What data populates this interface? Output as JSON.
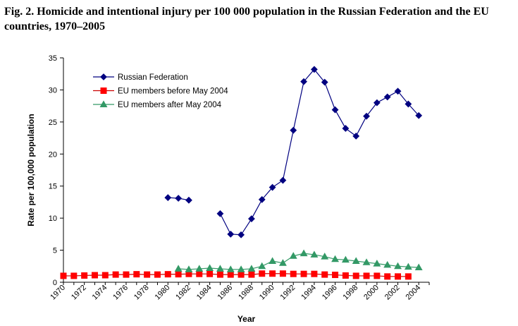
{
  "figure": {
    "title": "Fig. 2. Homicide and intentional injury per 100 000 population in the Russian Federation and the EU countries, 1970–2005"
  },
  "chart_data": {
    "type": "line",
    "title": "",
    "xlabel": "Year",
    "ylabel": "Rate per 100,000 population",
    "xlim": [
      1970,
      2005
    ],
    "ylim": [
      0,
      35
    ],
    "y_ticks": [
      0,
      5,
      10,
      15,
      20,
      25,
      30,
      35
    ],
    "x_ticks": [
      1970,
      1972,
      1974,
      1976,
      1978,
      1980,
      1982,
      1984,
      1986,
      1988,
      1990,
      1992,
      1994,
      1996,
      1998,
      2000,
      2002,
      2004
    ],
    "grid": false,
    "legend_position": "top-left",
    "series": [
      {
        "name": "Russian Federation",
        "color": "#000080",
        "marker": "diamond",
        "segments": [
          [
            [
              1980,
              13.2
            ],
            [
              1981,
              13.1
            ],
            [
              1982,
              12.8
            ]
          ],
          [
            [
              1985,
              10.7
            ],
            [
              1986,
              7.5
            ],
            [
              1987,
              7.4
            ],
            [
              1988,
              9.9
            ],
            [
              1989,
              12.9
            ],
            [
              1990,
              14.8
            ],
            [
              1991,
              15.9
            ],
            [
              1992,
              23.7
            ],
            [
              1993,
              31.3
            ],
            [
              1994,
              33.2
            ],
            [
              1995,
              31.2
            ],
            [
              1996,
              26.9
            ],
            [
              1997,
              24.0
            ],
            [
              1998,
              22.8
            ],
            [
              1999,
              25.9
            ],
            [
              2000,
              28.0
            ],
            [
              2001,
              28.9
            ],
            [
              2002,
              29.8
            ],
            [
              2003,
              27.8
            ],
            [
              2004,
              26.0
            ]
          ]
        ]
      },
      {
        "name": "EU members before May 2004",
        "color": "#ff0000",
        "line_color": "#cc0000",
        "marker": "square",
        "segments": [
          [
            [
              1970,
              1.0
            ],
            [
              1971,
              1.0
            ],
            [
              1972,
              1.05
            ],
            [
              1973,
              1.1
            ],
            [
              1974,
              1.1
            ],
            [
              1975,
              1.2
            ],
            [
              1976,
              1.2
            ],
            [
              1977,
              1.25
            ],
            [
              1978,
              1.2
            ],
            [
              1979,
              1.2
            ],
            [
              1980,
              1.25
            ],
            [
              1981,
              1.25
            ],
            [
              1982,
              1.3
            ],
            [
              1983,
              1.3
            ],
            [
              1984,
              1.3
            ],
            [
              1985,
              1.2
            ],
            [
              1986,
              1.2
            ],
            [
              1987,
              1.2
            ],
            [
              1988,
              1.2
            ],
            [
              1989,
              1.35
            ],
            [
              1990,
              1.35
            ],
            [
              1991,
              1.35
            ],
            [
              1992,
              1.3
            ],
            [
              1993,
              1.3
            ],
            [
              1994,
              1.3
            ],
            [
              1995,
              1.2
            ],
            [
              1996,
              1.15
            ],
            [
              1997,
              1.05
            ],
            [
              1998,
              1.0
            ],
            [
              1999,
              1.0
            ],
            [
              2000,
              1.0
            ],
            [
              2001,
              0.9
            ],
            [
              2002,
              0.9
            ],
            [
              2003,
              0.9
            ]
          ]
        ]
      },
      {
        "name": "EU members after May 2004",
        "color": "#339966",
        "marker": "triangle",
        "segments": [
          [
            [
              1981,
              2.1
            ],
            [
              1982,
              2.0
            ],
            [
              1983,
              2.1
            ],
            [
              1984,
              2.2
            ],
            [
              1985,
              2.1
            ],
            [
              1986,
              2.0
            ],
            [
              1987,
              2.0
            ],
            [
              1988,
              2.1
            ],
            [
              1989,
              2.5
            ],
            [
              1990,
              3.3
            ],
            [
              1991,
              3.0
            ],
            [
              1992,
              4.1
            ],
            [
              1993,
              4.5
            ],
            [
              1994,
              4.3
            ],
            [
              1995,
              4.0
            ],
            [
              1996,
              3.6
            ],
            [
              1997,
              3.5
            ],
            [
              1998,
              3.3
            ],
            [
              1999,
              3.1
            ],
            [
              2000,
              2.9
            ],
            [
              2001,
              2.7
            ],
            [
              2002,
              2.5
            ],
            [
              2003,
              2.4
            ],
            [
              2004,
              2.3
            ]
          ]
        ]
      }
    ]
  }
}
